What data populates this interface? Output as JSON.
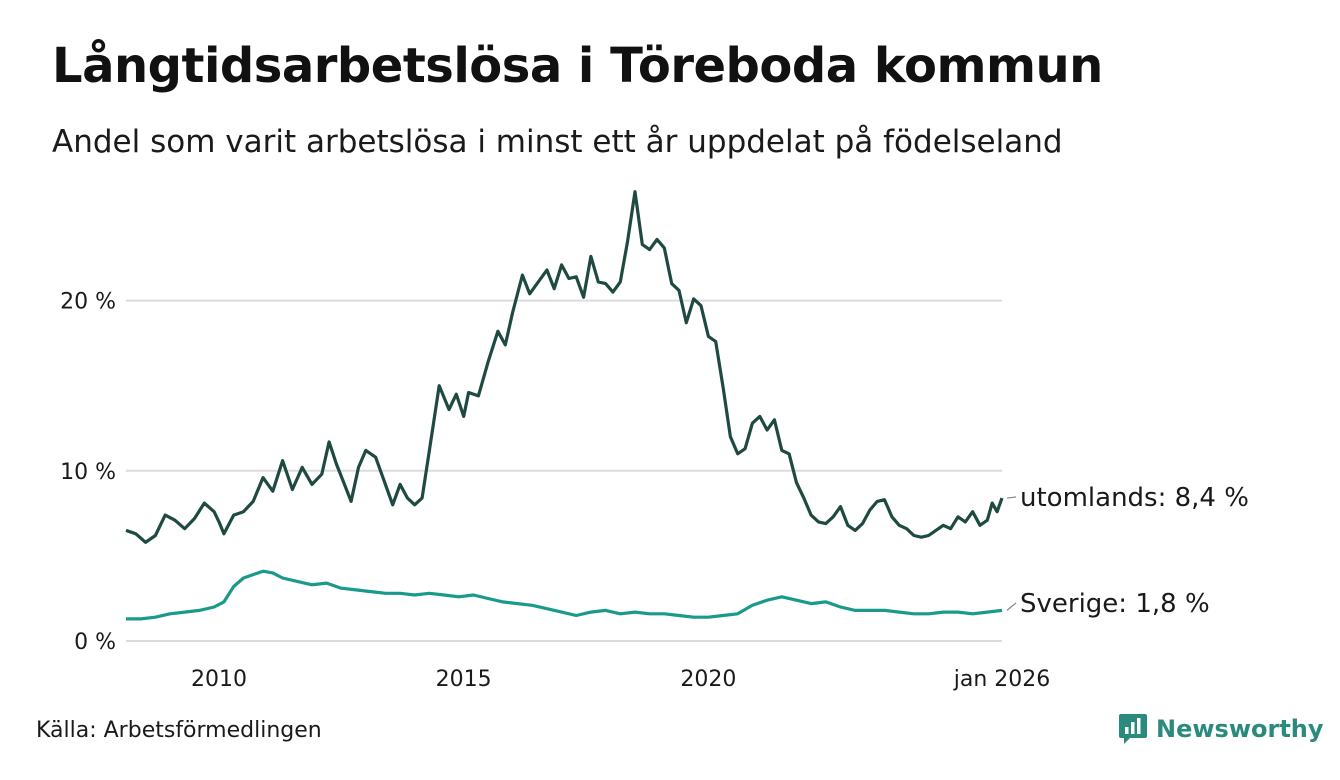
{
  "header": {
    "title": "Långtidsarbetslösa i Töreboda kommun",
    "subtitle": "Andel som varit arbetslösa i minst ett år uppdelat på födelseland"
  },
  "footer": {
    "source": "Källa: Arbetsförmedlingen",
    "brand": "Newsworthy",
    "brand_color": "#2b8a7e"
  },
  "chart_data": {
    "type": "line",
    "title": "Långtidsarbetslösa i Töreboda kommun",
    "subtitle": "Andel som varit arbetslösa i minst ett år uppdelat på födelseland",
    "xlabel": "",
    "ylabel": "",
    "x_range": [
      2008.1,
      2026.0
    ],
    "ylim": [
      0,
      26.5
    ],
    "y_ticks": [
      0,
      10,
      20
    ],
    "y_tick_labels": [
      "0 %",
      "10 %",
      "20 %"
    ],
    "x_ticks": [
      2010,
      2015,
      2020,
      2026
    ],
    "x_tick_labels": [
      "2010",
      "2015",
      "2020",
      "jan 2026"
    ],
    "grid": true,
    "series": [
      {
        "name": "utomlands",
        "end_label": "utomlands: 8,4 %",
        "color": "#1f4a42",
        "points": [
          [
            2008.1,
            6.5
          ],
          [
            2008.3,
            6.3
          ],
          [
            2008.5,
            5.8
          ],
          [
            2008.7,
            6.2
          ],
          [
            2008.9,
            7.4
          ],
          [
            2009.1,
            7.1
          ],
          [
            2009.3,
            6.6
          ],
          [
            2009.5,
            7.2
          ],
          [
            2009.7,
            8.1
          ],
          [
            2009.9,
            7.6
          ],
          [
            2010.0,
            7.0
          ],
          [
            2010.1,
            6.3
          ],
          [
            2010.3,
            7.4
          ],
          [
            2010.5,
            7.6
          ],
          [
            2010.7,
            8.2
          ],
          [
            2010.9,
            9.6
          ],
          [
            2011.1,
            8.8
          ],
          [
            2011.3,
            10.6
          ],
          [
            2011.5,
            8.9
          ],
          [
            2011.7,
            10.2
          ],
          [
            2011.9,
            9.2
          ],
          [
            2012.1,
            9.8
          ],
          [
            2012.25,
            11.7
          ],
          [
            2012.4,
            10.4
          ],
          [
            2012.55,
            9.3
          ],
          [
            2012.7,
            8.2
          ],
          [
            2012.85,
            10.2
          ],
          [
            2013.0,
            11.2
          ],
          [
            2013.2,
            10.8
          ],
          [
            2013.4,
            9.2
          ],
          [
            2013.55,
            8.0
          ],
          [
            2013.7,
            9.2
          ],
          [
            2013.85,
            8.4
          ],
          [
            2014.0,
            8.0
          ],
          [
            2014.15,
            8.4
          ],
          [
            2014.3,
            11.2
          ],
          [
            2014.5,
            15.0
          ],
          [
            2014.7,
            13.6
          ],
          [
            2014.85,
            14.5
          ],
          [
            2015.0,
            13.2
          ],
          [
            2015.1,
            14.6
          ],
          [
            2015.3,
            14.4
          ],
          [
            2015.5,
            16.4
          ],
          [
            2015.7,
            18.2
          ],
          [
            2015.85,
            17.4
          ],
          [
            2016.0,
            19.3
          ],
          [
            2016.2,
            21.5
          ],
          [
            2016.35,
            20.4
          ],
          [
            2016.5,
            21.0
          ],
          [
            2016.7,
            21.8
          ],
          [
            2016.85,
            20.7
          ],
          [
            2017.0,
            22.1
          ],
          [
            2017.15,
            21.3
          ],
          [
            2017.3,
            21.4
          ],
          [
            2017.45,
            20.2
          ],
          [
            2017.6,
            22.6
          ],
          [
            2017.75,
            21.1
          ],
          [
            2017.9,
            21.0
          ],
          [
            2018.05,
            20.5
          ],
          [
            2018.2,
            21.1
          ],
          [
            2018.35,
            23.5
          ],
          [
            2018.5,
            26.4
          ],
          [
            2018.65,
            23.3
          ],
          [
            2018.8,
            23.0
          ],
          [
            2018.95,
            23.6
          ],
          [
            2019.1,
            23.1
          ],
          [
            2019.25,
            21.0
          ],
          [
            2019.4,
            20.6
          ],
          [
            2019.55,
            18.7
          ],
          [
            2019.7,
            20.1
          ],
          [
            2019.85,
            19.7
          ],
          [
            2020.0,
            17.9
          ],
          [
            2020.15,
            17.6
          ],
          [
            2020.3,
            14.9
          ],
          [
            2020.45,
            12.0
          ],
          [
            2020.6,
            11.0
          ],
          [
            2020.75,
            11.3
          ],
          [
            2020.9,
            12.8
          ],
          [
            2021.05,
            13.2
          ],
          [
            2021.2,
            12.4
          ],
          [
            2021.35,
            13.0
          ],
          [
            2021.5,
            11.2
          ],
          [
            2021.65,
            11.0
          ],
          [
            2021.8,
            9.3
          ],
          [
            2021.95,
            8.4
          ],
          [
            2022.1,
            7.4
          ],
          [
            2022.25,
            7.0
          ],
          [
            2022.4,
            6.9
          ],
          [
            2022.55,
            7.3
          ],
          [
            2022.7,
            7.9
          ],
          [
            2022.85,
            6.8
          ],
          [
            2023.0,
            6.5
          ],
          [
            2023.15,
            6.9
          ],
          [
            2023.3,
            7.7
          ],
          [
            2023.45,
            8.2
          ],
          [
            2023.6,
            8.3
          ],
          [
            2023.75,
            7.3
          ],
          [
            2023.9,
            6.8
          ],
          [
            2024.05,
            6.6
          ],
          [
            2024.2,
            6.2
          ],
          [
            2024.35,
            6.1
          ],
          [
            2024.5,
            6.2
          ],
          [
            2024.65,
            6.5
          ],
          [
            2024.8,
            6.8
          ],
          [
            2024.95,
            6.6
          ],
          [
            2025.1,
            7.3
          ],
          [
            2025.25,
            7.0
          ],
          [
            2025.4,
            7.6
          ],
          [
            2025.55,
            6.8
          ],
          [
            2025.7,
            7.1
          ],
          [
            2025.8,
            8.1
          ],
          [
            2025.9,
            7.6
          ],
          [
            2026.0,
            8.4
          ]
        ]
      },
      {
        "name": "Sverige",
        "end_label": "Sverige: 1,8 %",
        "color": "#1a9a8a",
        "points": [
          [
            2008.1,
            1.3
          ],
          [
            2008.4,
            1.3
          ],
          [
            2008.7,
            1.4
          ],
          [
            2009.0,
            1.6
          ],
          [
            2009.3,
            1.7
          ],
          [
            2009.6,
            1.8
          ],
          [
            2009.9,
            2.0
          ],
          [
            2010.1,
            2.3
          ],
          [
            2010.3,
            3.2
          ],
          [
            2010.5,
            3.7
          ],
          [
            2010.7,
            3.9
          ],
          [
            2010.9,
            4.1
          ],
          [
            2011.1,
            4.0
          ],
          [
            2011.3,
            3.7
          ],
          [
            2011.6,
            3.5
          ],
          [
            2011.9,
            3.3
          ],
          [
            2012.2,
            3.4
          ],
          [
            2012.5,
            3.1
          ],
          [
            2012.8,
            3.0
          ],
          [
            2013.1,
            2.9
          ],
          [
            2013.4,
            2.8
          ],
          [
            2013.7,
            2.8
          ],
          [
            2014.0,
            2.7
          ],
          [
            2014.3,
            2.8
          ],
          [
            2014.6,
            2.7
          ],
          [
            2014.9,
            2.6
          ],
          [
            2015.2,
            2.7
          ],
          [
            2015.5,
            2.5
          ],
          [
            2015.8,
            2.3
          ],
          [
            2016.1,
            2.2
          ],
          [
            2016.4,
            2.1
          ],
          [
            2016.7,
            1.9
          ],
          [
            2017.0,
            1.7
          ],
          [
            2017.3,
            1.5
          ],
          [
            2017.6,
            1.7
          ],
          [
            2017.9,
            1.8
          ],
          [
            2018.2,
            1.6
          ],
          [
            2018.5,
            1.7
          ],
          [
            2018.8,
            1.6
          ],
          [
            2019.1,
            1.6
          ],
          [
            2019.4,
            1.5
          ],
          [
            2019.7,
            1.4
          ],
          [
            2020.0,
            1.4
          ],
          [
            2020.3,
            1.5
          ],
          [
            2020.6,
            1.6
          ],
          [
            2020.9,
            2.1
          ],
          [
            2021.2,
            2.4
          ],
          [
            2021.5,
            2.6
          ],
          [
            2021.8,
            2.4
          ],
          [
            2022.1,
            2.2
          ],
          [
            2022.4,
            2.3
          ],
          [
            2022.7,
            2.0
          ],
          [
            2023.0,
            1.8
          ],
          [
            2023.3,
            1.8
          ],
          [
            2023.6,
            1.8
          ],
          [
            2023.9,
            1.7
          ],
          [
            2024.2,
            1.6
          ],
          [
            2024.5,
            1.6
          ],
          [
            2024.8,
            1.7
          ],
          [
            2025.1,
            1.7
          ],
          [
            2025.4,
            1.6
          ],
          [
            2025.7,
            1.7
          ],
          [
            2026.0,
            1.8
          ]
        ]
      }
    ]
  }
}
